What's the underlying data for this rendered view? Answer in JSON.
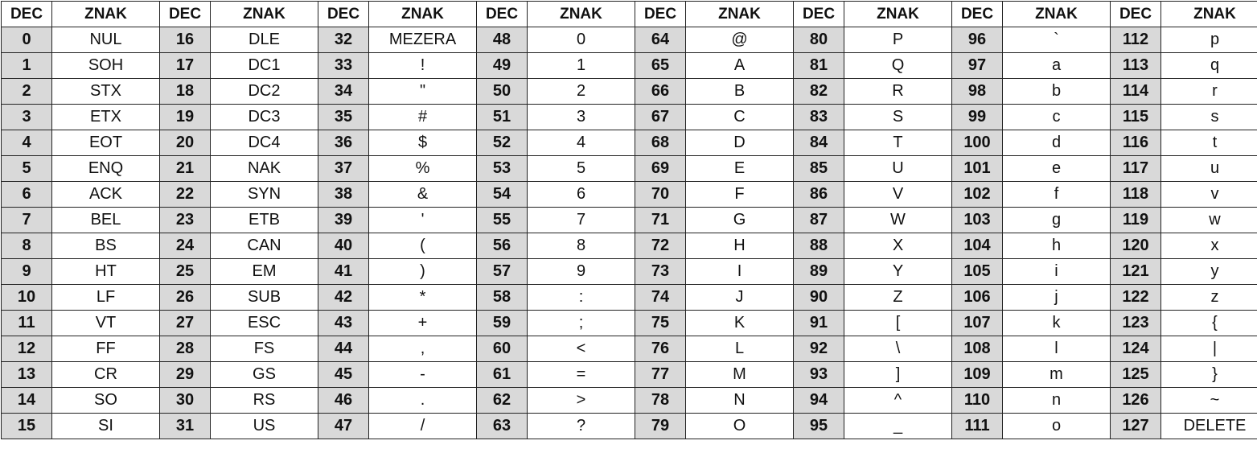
{
  "headers": {
    "dec": "DEC",
    "char": "ZNAK"
  },
  "rows": [
    [
      "0",
      "NUL",
      "16",
      "DLE",
      "32",
      "MEZERA",
      "48",
      "0",
      "64",
      "@",
      "80",
      "P",
      "96",
      "`",
      "112",
      "p"
    ],
    [
      "1",
      "SOH",
      "17",
      "DC1",
      "33",
      "!",
      "49",
      "1",
      "65",
      "A",
      "81",
      "Q",
      "97",
      "a",
      "113",
      "q"
    ],
    [
      "2",
      "STX",
      "18",
      "DC2",
      "34",
      "\"",
      "50",
      "2",
      "66",
      "B",
      "82",
      "R",
      "98",
      "b",
      "114",
      "r"
    ],
    [
      "3",
      "ETX",
      "19",
      "DC3",
      "35",
      "#",
      "51",
      "3",
      "67",
      "C",
      "83",
      "S",
      "99",
      "c",
      "115",
      "s"
    ],
    [
      "4",
      "EOT",
      "20",
      "DC4",
      "36",
      "$",
      "52",
      "4",
      "68",
      "D",
      "84",
      "T",
      "100",
      "d",
      "116",
      "t"
    ],
    [
      "5",
      "ENQ",
      "21",
      "NAK",
      "37",
      "%",
      "53",
      "5",
      "69",
      "E",
      "85",
      "U",
      "101",
      "e",
      "117",
      "u"
    ],
    [
      "6",
      "ACK",
      "22",
      "SYN",
      "38",
      "&",
      "54",
      "6",
      "70",
      "F",
      "86",
      "V",
      "102",
      "f",
      "118",
      "v"
    ],
    [
      "7",
      "BEL",
      "23",
      "ETB",
      "39",
      "'",
      "55",
      "7",
      "71",
      "G",
      "87",
      "W",
      "103",
      "g",
      "119",
      "w"
    ],
    [
      "8",
      "BS",
      "24",
      "CAN",
      "40",
      "(",
      "56",
      "8",
      "72",
      "H",
      "88",
      "X",
      "104",
      "h",
      "120",
      "x"
    ],
    [
      "9",
      "HT",
      "25",
      "EM",
      "41",
      ")",
      "57",
      "9",
      "73",
      "I",
      "89",
      "Y",
      "105",
      "i",
      "121",
      "y"
    ],
    [
      "10",
      "LF",
      "26",
      "SUB",
      "42",
      "*",
      "58",
      ":",
      "74",
      "J",
      "90",
      "Z",
      "106",
      "j",
      "122",
      "z"
    ],
    [
      "11",
      "VT",
      "27",
      "ESC",
      "43",
      "+",
      "59",
      ";",
      "75",
      "K",
      "91",
      "[",
      "107",
      "k",
      "123",
      "{"
    ],
    [
      "12",
      "FF",
      "28",
      "FS",
      "44",
      ",",
      "60",
      "<",
      "76",
      "L",
      "92",
      "\\",
      "108",
      "l",
      "124",
      "|"
    ],
    [
      "13",
      "CR",
      "29",
      "GS",
      "45",
      "-",
      "61",
      "=",
      "77",
      "M",
      "93",
      "]",
      "109",
      "m",
      "125",
      "}"
    ],
    [
      "14",
      "SO",
      "30",
      "RS",
      "46",
      ".",
      "62",
      ">",
      "78",
      "N",
      "94",
      "^",
      "110",
      "n",
      "126",
      "~"
    ],
    [
      "15",
      "SI",
      "31",
      "US",
      "47",
      "/",
      "63",
      "?",
      "79",
      "O",
      "95",
      "_",
      "111",
      "o",
      "127",
      "DELETE"
    ]
  ]
}
